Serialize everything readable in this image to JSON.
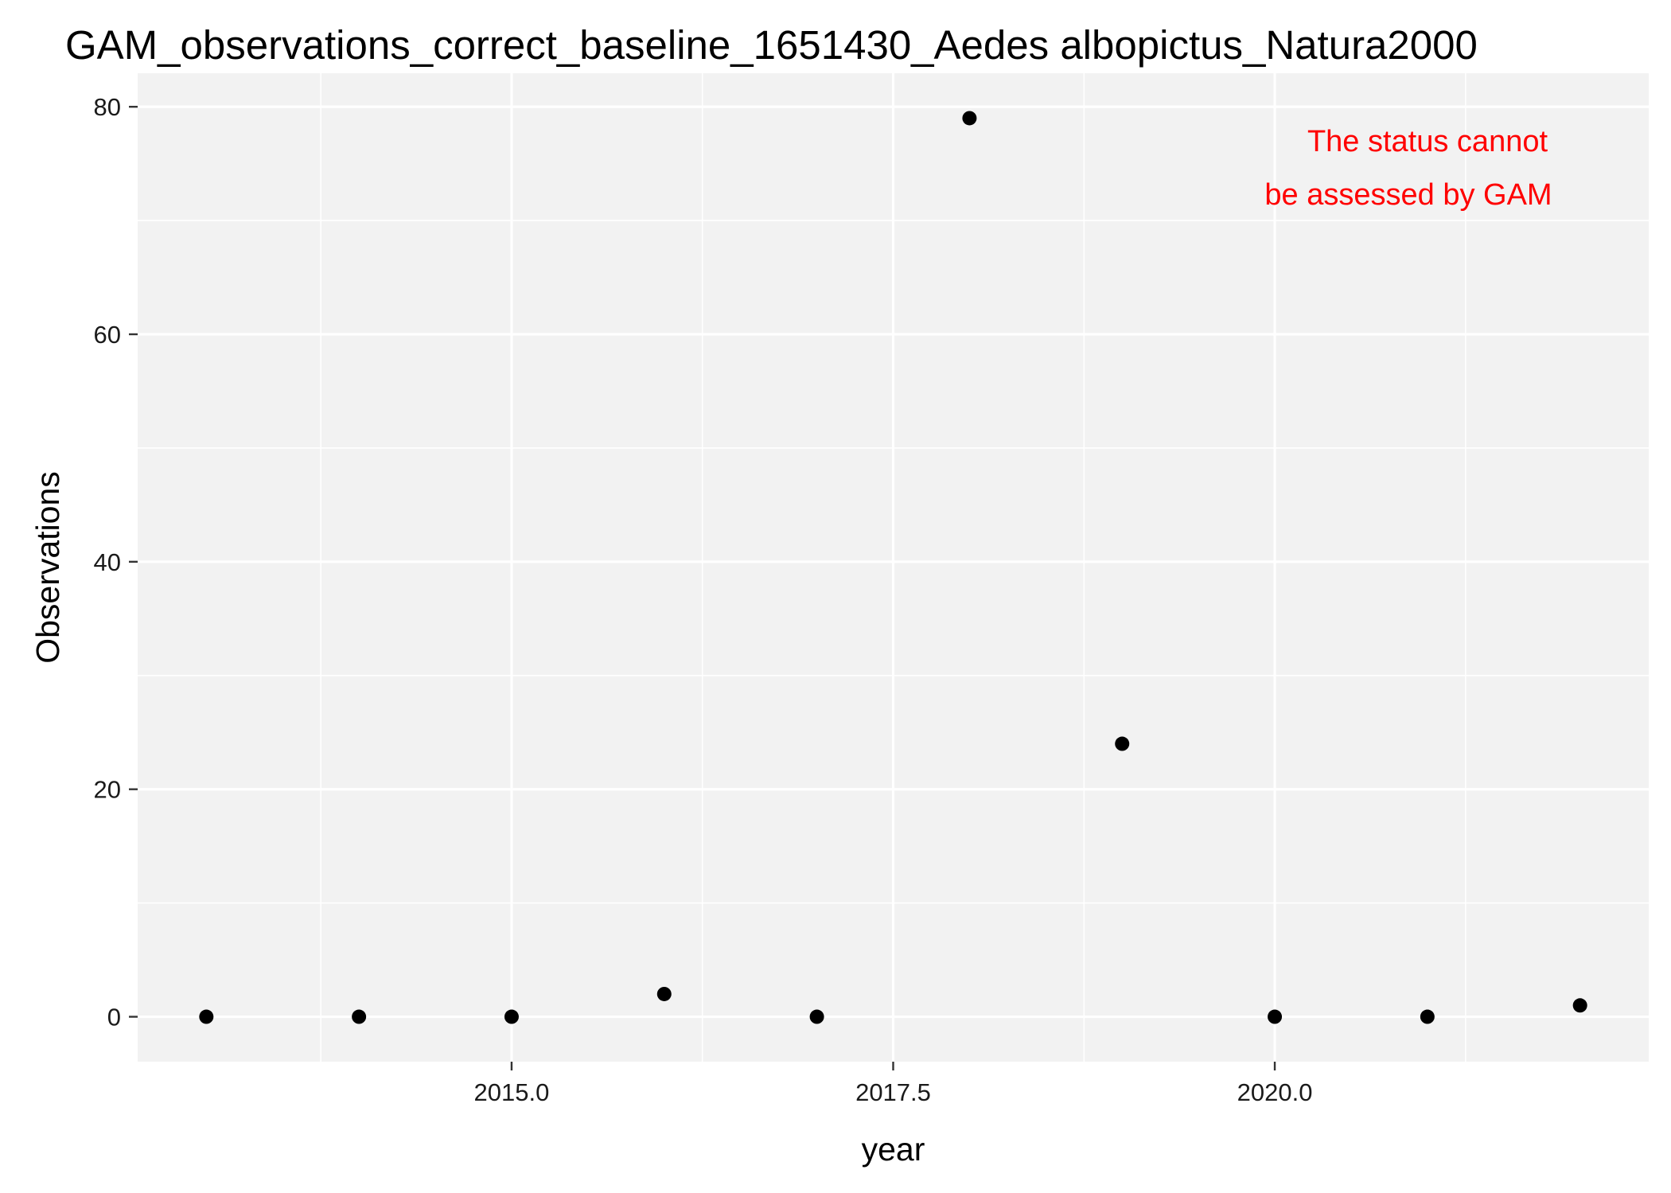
{
  "chart_data": {
    "type": "scatter",
    "title": "GAM_observations_correct_baseline_1651430_Aedes albopictus_Natura2000",
    "xlabel": "year",
    "ylabel": "Observations",
    "x": [
      2013,
      2014,
      2015,
      2016,
      2017,
      2018,
      2019,
      2020,
      2021,
      2022
    ],
    "y": [
      0,
      0,
      0,
      2,
      0,
      79,
      24,
      0,
      0,
      1
    ],
    "xlim": [
      2012.55,
      2022.45
    ],
    "ylim": [
      -3.95,
      82.95
    ],
    "x_ticks": [
      2015.0,
      2017.5,
      2020.0
    ],
    "x_tick_labels": [
      "2015.0",
      "2017.5",
      "2020.0"
    ],
    "y_ticks": [
      0,
      20,
      40,
      60,
      80
    ],
    "y_tick_labels": [
      "0",
      "20",
      "40",
      "60",
      "80"
    ],
    "grid": true,
    "legend": "none",
    "annotation": {
      "lines": [
        "The status cannot",
        "be assessed by GAM"
      ],
      "color": "#ff0000"
    },
    "colors": {
      "panel": "#f2f2f2",
      "grid": "#ffffff",
      "point": "#000000"
    }
  }
}
